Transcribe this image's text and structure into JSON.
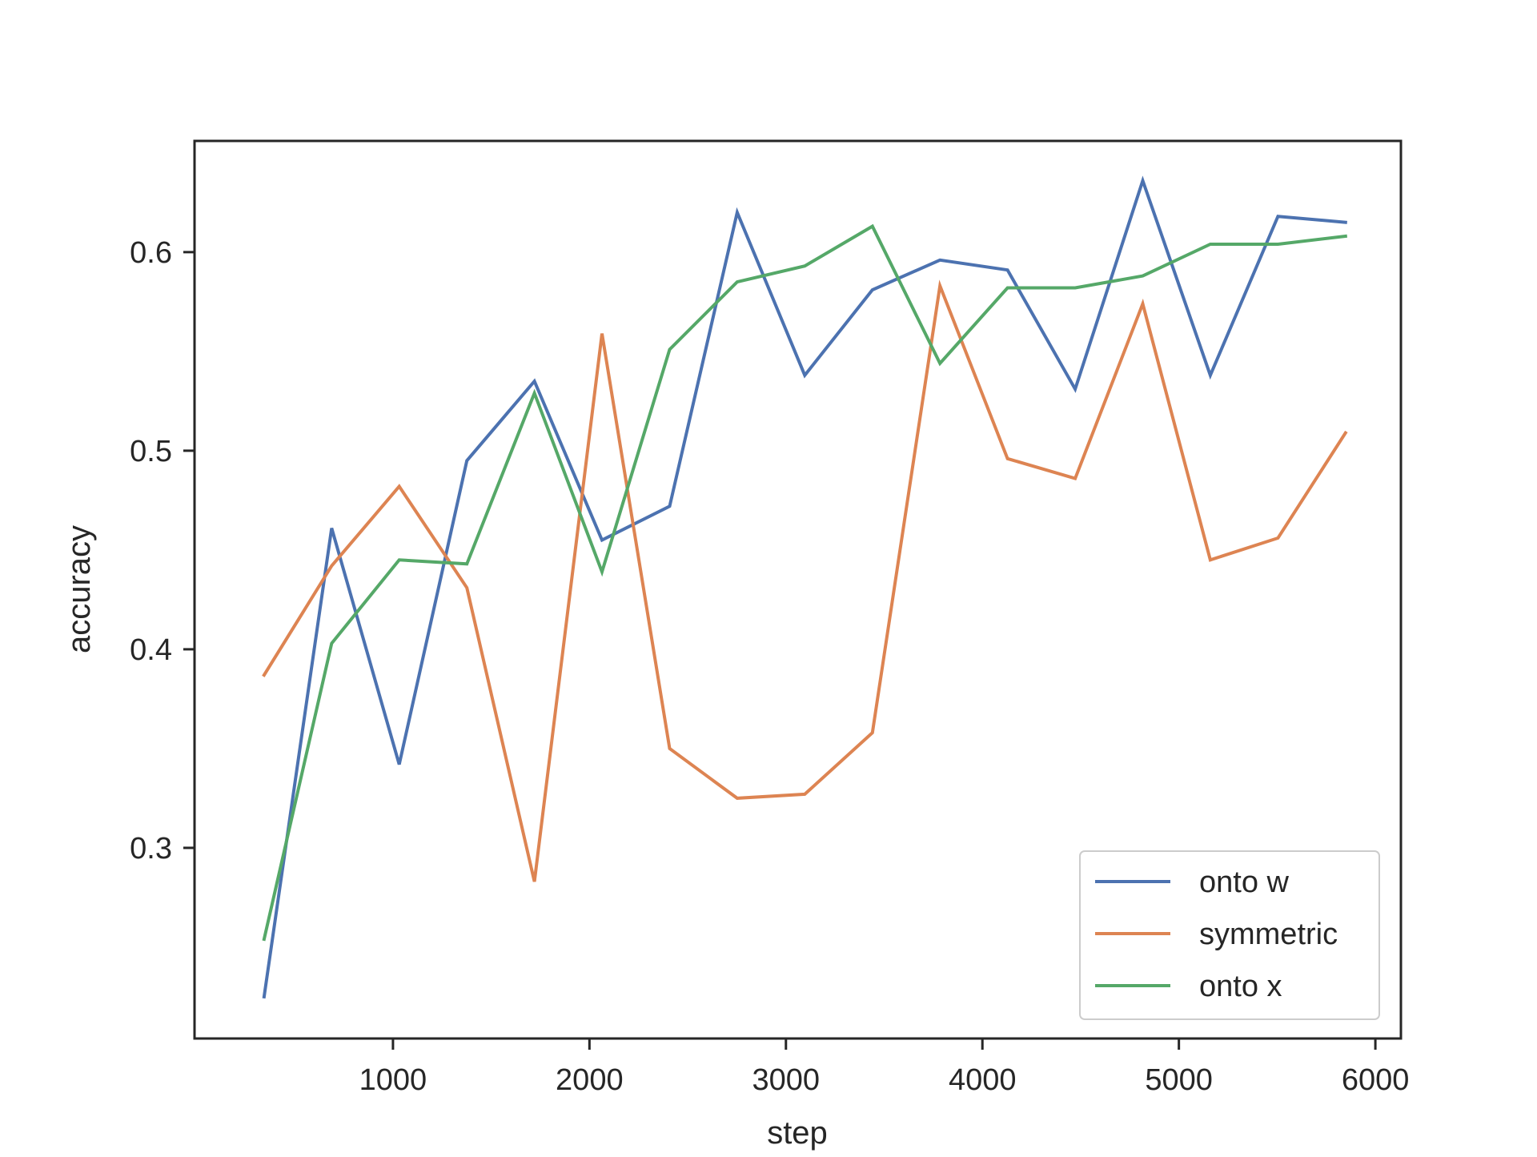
{
  "chart_data": {
    "type": "line",
    "title": "",
    "xlabel": "step",
    "ylabel": "accuracy",
    "xlim": [
      -10,
      6130
    ],
    "ylim": [
      0.204,
      0.656
    ],
    "xticks": [
      1000,
      2000,
      3000,
      4000,
      5000,
      6000
    ],
    "xtick_labels": [
      "1000",
      "2000",
      "3000",
      "4000",
      "5000",
      "6000"
    ],
    "yticks": [
      0.3,
      0.4,
      0.5,
      0.6
    ],
    "ytick_labels": [
      "0.3",
      "0.4",
      "0.5",
      "0.6"
    ],
    "grid": false,
    "legend_position": "lower-right",
    "x": [
      344,
      688,
      1032,
      1376,
      1720,
      2064,
      2408,
      2752,
      3096,
      3440,
      3784,
      4128,
      4472,
      4816,
      5160,
      5504,
      5848
    ],
    "series": [
      {
        "name": "onto w",
        "color": "#4c72b0",
        "values": [
          0.225,
          0.461,
          0.342,
          0.495,
          0.535,
          0.455,
          0.472,
          0.62,
          0.538,
          0.581,
          0.596,
          0.591,
          0.531,
          0.636,
          0.538,
          0.618,
          0.615
        ]
      },
      {
        "name": "symmetric",
        "color": "#dd8452",
        "values": [
          0.387,
          0.442,
          0.482,
          0.431,
          0.283,
          0.559,
          0.35,
          0.325,
          0.327,
          0.358,
          0.583,
          0.496,
          0.486,
          0.574,
          0.445,
          0.456,
          0.509
        ]
      },
      {
        "name": "onto x",
        "color": "#55a868",
        "values": [
          0.254,
          0.403,
          0.445,
          0.443,
          0.529,
          0.439,
          0.551,
          0.585,
          0.593,
          0.613,
          0.544,
          0.582,
          0.582,
          0.588,
          0.604,
          0.604,
          0.608
        ]
      }
    ]
  }
}
